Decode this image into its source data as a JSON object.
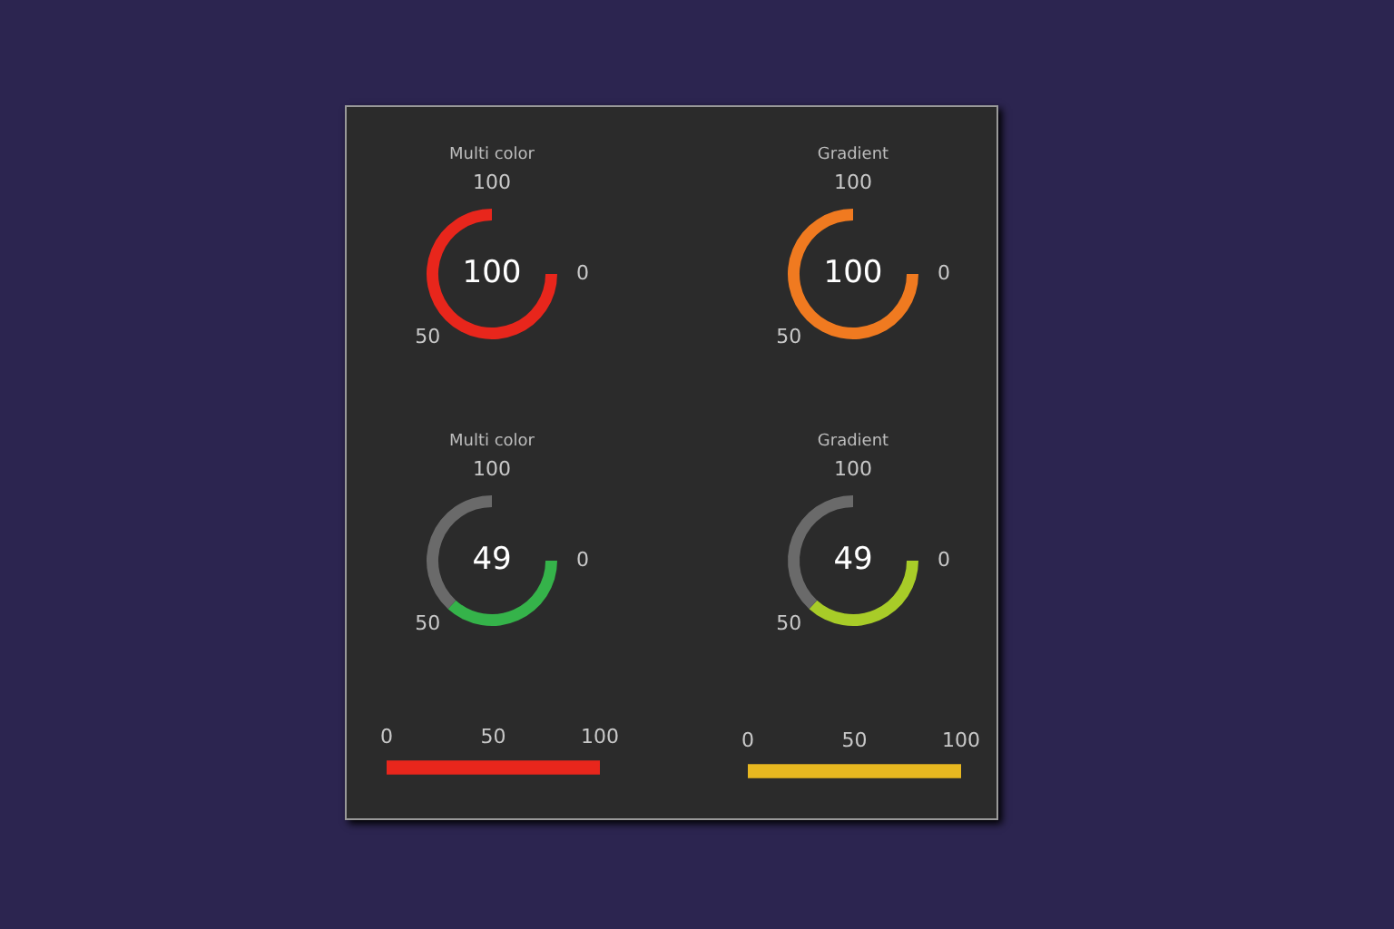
{
  "chart_data": [
    {
      "type": "pie",
      "title": "Multi color",
      "categories": [
        null,
        null
      ],
      "values": [
        100,
        0
      ],
      "colors": [
        "#e8261c",
        "#6a6a6a"
      ],
      "annotations": [
        "100",
        "0",
        "50",
        "100"
      ]
    },
    {
      "type": "pie",
      "title": "Gradient",
      "categories": [
        null,
        null
      ],
      "values": [
        100,
        0
      ],
      "colors": [
        "#f07a20",
        "#6a6a6a"
      ],
      "annotations": [
        "100",
        "0",
        "50",
        "100"
      ]
    },
    {
      "type": "donut",
      "title": "Multi color",
      "categories": [
        null,
        null
      ],
      "values": [
        49,
        51
      ],
      "colors": [
        "#35b34a",
        "#6a6a6a"
      ],
      "annotations": [
        "49",
        "0",
        "50",
        "100"
      ]
    },
    {
      "type": "donut",
      "title": "Gradient",
      "categories": [
        null,
        null
      ],
      "values": [
        49,
        51
      ],
      "colors": [
        "#a8cc28",
        "#6a6a6a"
      ],
      "annotations": [
        "49",
        "0",
        "50",
        "100"
      ]
    },
    {
      "type": "bar",
      "orientation": "horizontal",
      "categories": [
        null
      ],
      "values": [
        100
      ],
      "colors": [
        "#e8261c"
      ],
      "xlim": [
        0,
        100
      ],
      "xticks": [
        0,
        50,
        100
      ],
      "tick_labels": "x"
    },
    {
      "type": "bar",
      "orientation": "horizontal",
      "categories": [
        null
      ],
      "values": [
        100
      ],
      "colors": [
        "#e8b820"
      ],
      "xlim": [
        0,
        100
      ],
      "xticks": [
        0,
        50,
        100
      ],
      "tick_labels": "x"
    }
  ]
}
